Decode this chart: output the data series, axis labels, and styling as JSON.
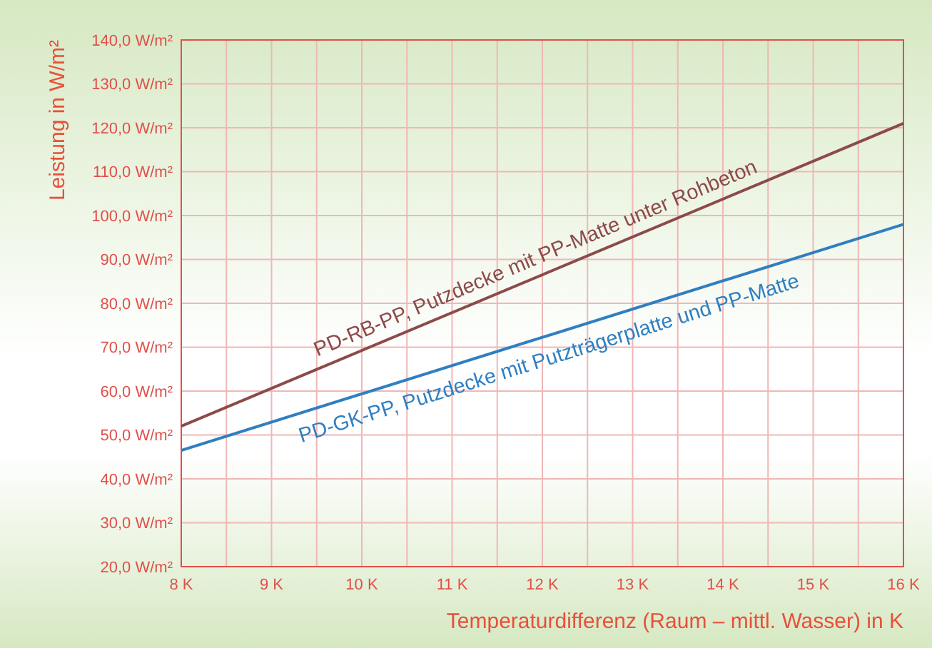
{
  "chart_data": {
    "type": "line",
    "xlabel": "Temperaturdifferenz (Raum – mittl. Wasser) in K",
    "ylabel": "Leistung in W/m²",
    "x": [
      8,
      16
    ],
    "series": [
      {
        "name": "PD-RB-PP, Putzdecke mit PP-Matte unter Rohbeton",
        "color": "#8c4a4a",
        "values": [
          52,
          121
        ]
      },
      {
        "name": "PD-GK-PP, Putzdecke mit Putzträgerplatte und PP-Matte",
        "color": "#2f7fc1",
        "values": [
          46.5,
          98
        ]
      }
    ],
    "xlim": [
      8,
      16
    ],
    "xticks": [
      {
        "value": 8,
        "label": "8 K"
      },
      {
        "value": 8.5,
        "label": null
      },
      {
        "value": 9,
        "label": "9 K"
      },
      {
        "value": 9.5,
        "label": null
      },
      {
        "value": 10,
        "label": "10 K"
      },
      {
        "value": 10.5,
        "label": null
      },
      {
        "value": 11,
        "label": "11 K"
      },
      {
        "value": 11.5,
        "label": null
      },
      {
        "value": 12,
        "label": "12 K"
      },
      {
        "value": 12.5,
        "label": null
      },
      {
        "value": 13,
        "label": "13 K"
      },
      {
        "value": 13.5,
        "label": null
      },
      {
        "value": 14,
        "label": "14 K"
      },
      {
        "value": 14.5,
        "label": null
      },
      {
        "value": 15,
        "label": "15 K"
      },
      {
        "value": 15.5,
        "label": null
      },
      {
        "value": 16,
        "label": "16 K"
      }
    ],
    "ylim": [
      20,
      140
    ],
    "yticks": [
      {
        "value": 20,
        "label": "20,0 W/m²"
      },
      {
        "value": 30,
        "label": "30,0 W/m²"
      },
      {
        "value": 40,
        "label": "40,0 W/m²"
      },
      {
        "value": 50,
        "label": "50,0 W/m²"
      },
      {
        "value": 60,
        "label": "60,0 W/m²"
      },
      {
        "value": 70,
        "label": "70,0 W/m²"
      },
      {
        "value": 80,
        "label": "80,0 W/m²"
      },
      {
        "value": 90,
        "label": "90,0 W/m²"
      },
      {
        "value": 100,
        "label": "100,0 W/m²"
      },
      {
        "value": 110,
        "label": "110,0 W/m²"
      },
      {
        "value": 120,
        "label": "120,0 W/m²"
      },
      {
        "value": 130,
        "label": "130,0 W/m²"
      },
      {
        "value": 140,
        "label": "140,0 W/m²"
      }
    ],
    "grid": true,
    "marker": "none",
    "line_style": "solid"
  }
}
